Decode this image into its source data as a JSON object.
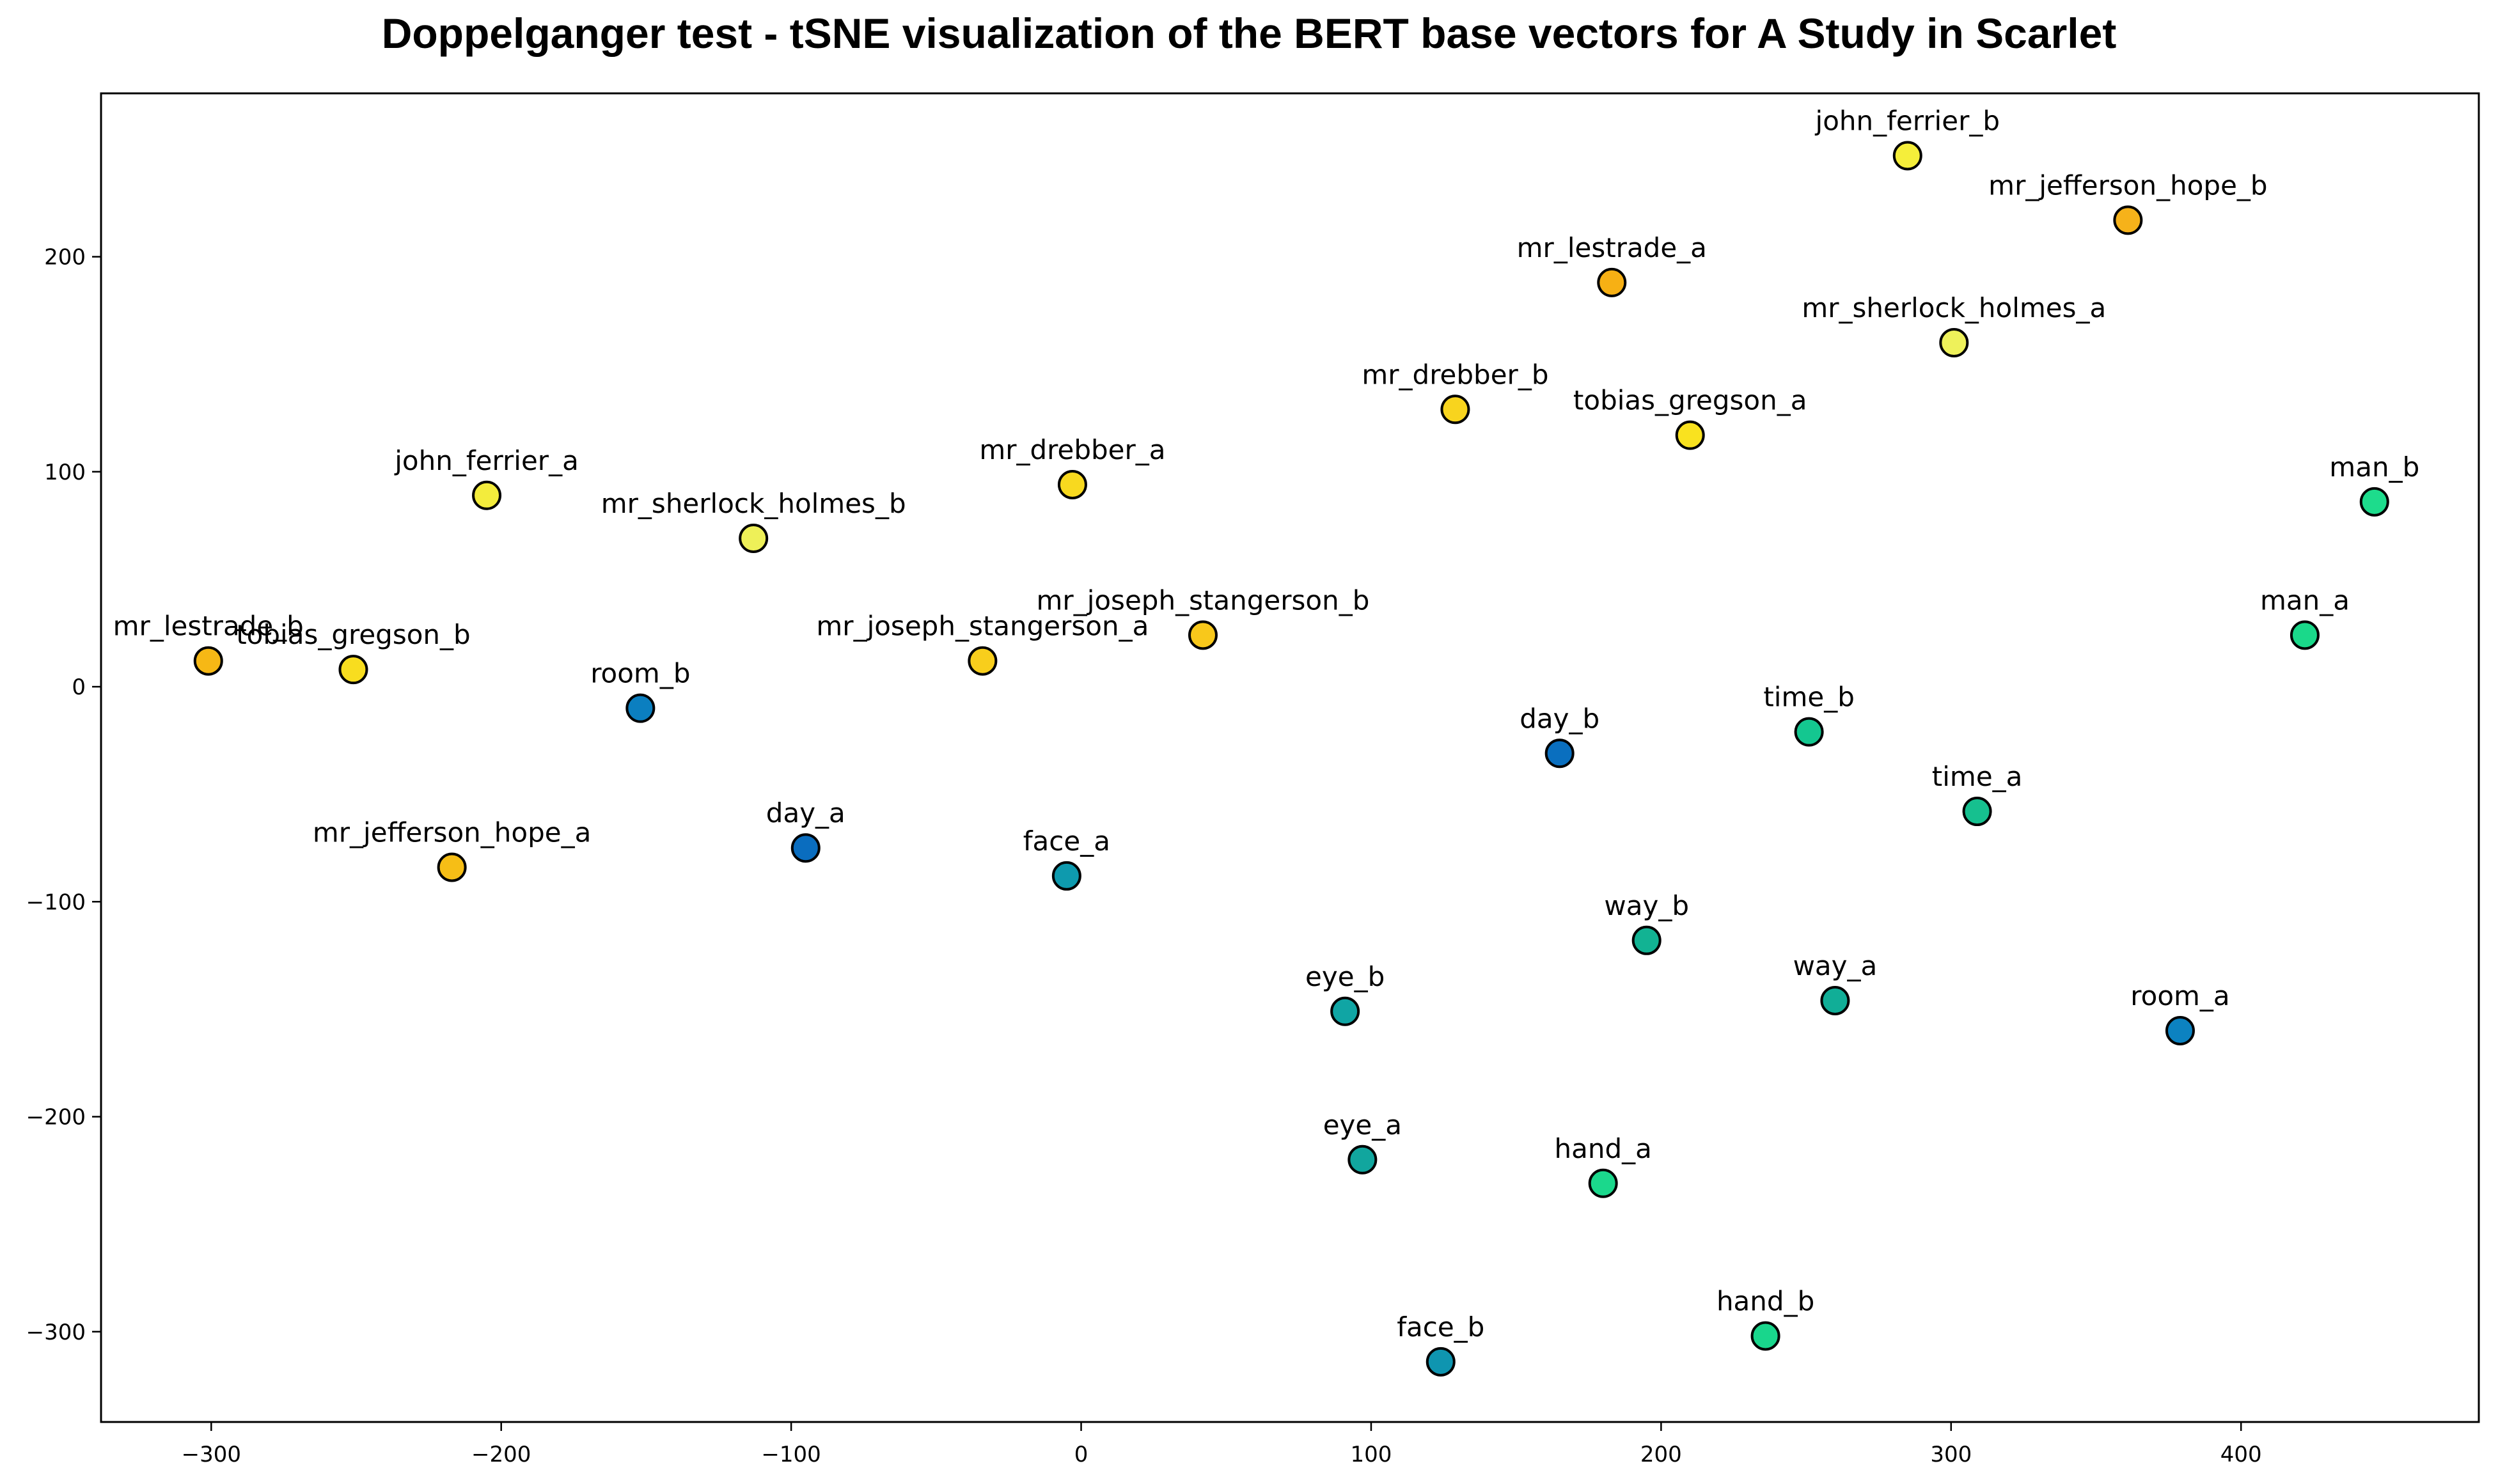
{
  "chart_data": {
    "type": "scatter",
    "title": "Doppelganger test - tSNE visualization of the BERT base vectors for A Study in Scarlet",
    "xlabel": "",
    "ylabel": "",
    "xlim": [
      -338,
      482
    ],
    "ylim": [
      -342,
      276
    ],
    "xticks": [
      -300,
      -200,
      -100,
      0,
      100,
      200,
      300,
      400
    ],
    "yticks": [
      -300,
      -200,
      -100,
      0,
      100,
      200
    ],
    "grid": false,
    "legend": "none",
    "colormap": "viridis-like",
    "points": [
      {
        "label": "john_ferrier_b",
        "x": 285,
        "y": 247,
        "color": "#f5ee3a"
      },
      {
        "label": "mr_jefferson_hope_b",
        "x": 361,
        "y": 217,
        "color": "#f6b21a"
      },
      {
        "label": "mr_lestrade_a",
        "x": 183,
        "y": 188,
        "color": "#f7b014"
      },
      {
        "label": "mr_sherlock_holmes_a",
        "x": 301,
        "y": 160,
        "color": "#eef15a"
      },
      {
        "label": "mr_drebber_b",
        "x": 129,
        "y": 129,
        "color": "#f8d41e"
      },
      {
        "label": "tobias_gregson_a",
        "x": 210,
        "y": 117,
        "color": "#f9e21f"
      },
      {
        "label": "john_ferrier_a",
        "x": -205,
        "y": 89,
        "color": "#f3ec3c"
      },
      {
        "label": "mr_drebber_a",
        "x": -3,
        "y": 94,
        "color": "#f8d91f"
      },
      {
        "label": "mr_sherlock_holmes_b",
        "x": -113,
        "y": 69,
        "color": "#eef058"
      },
      {
        "label": "man_b",
        "x": 446,
        "y": 86,
        "color": "#1ddc8c"
      },
      {
        "label": "mr_joseph_stangerson_b",
        "x": 42,
        "y": 24,
        "color": "#f8c81b"
      },
      {
        "label": "mr_joseph_stangerson_a",
        "x": -34,
        "y": 12,
        "color": "#f8ce1c"
      },
      {
        "label": "mr_lestrade_b",
        "x": -301,
        "y": 12,
        "color": "#f6b815"
      },
      {
        "label": "tobias_gregson_b",
        "x": -251,
        "y": 8,
        "color": "#f8dd1f"
      },
      {
        "label": "man_a",
        "x": 422,
        "y": 24,
        "color": "#1ad98a"
      },
      {
        "label": "room_b",
        "x": -152,
        "y": -10,
        "color": "#0b7fc0"
      },
      {
        "label": "day_b",
        "x": 165,
        "y": -31,
        "color": "#0a6fbf"
      },
      {
        "label": "time_b",
        "x": 251,
        "y": -21,
        "color": "#14c790"
      },
      {
        "label": "time_a",
        "x": 309,
        "y": -58,
        "color": "#16c08f"
      },
      {
        "label": "mr_jefferson_hope_a",
        "x": -217,
        "y": -84,
        "color": "#f6be16"
      },
      {
        "label": "day_a",
        "x": -95,
        "y": -75,
        "color": "#0a6dbf"
      },
      {
        "label": "face_a",
        "x": -5,
        "y": -88,
        "color": "#0e9aae"
      },
      {
        "label": "way_b",
        "x": 195,
        "y": -118,
        "color": "#12b393"
      },
      {
        "label": "way_a",
        "x": 260,
        "y": -146,
        "color": "#11ae97"
      },
      {
        "label": "eye_b",
        "x": 91,
        "y": -151,
        "color": "#10a5a4"
      },
      {
        "label": "room_a",
        "x": 379,
        "y": -160,
        "color": "#0c82c1"
      },
      {
        "label": "eye_a",
        "x": 97,
        "y": -220,
        "color": "#11a69e"
      },
      {
        "label": "hand_a",
        "x": 180,
        "y": -231,
        "color": "#1bd88c"
      },
      {
        "label": "face_b",
        "x": 124,
        "y": -314,
        "color": "#0f95b0"
      },
      {
        "label": "hand_b",
        "x": 236,
        "y": -302,
        "color": "#19d68c"
      }
    ]
  }
}
